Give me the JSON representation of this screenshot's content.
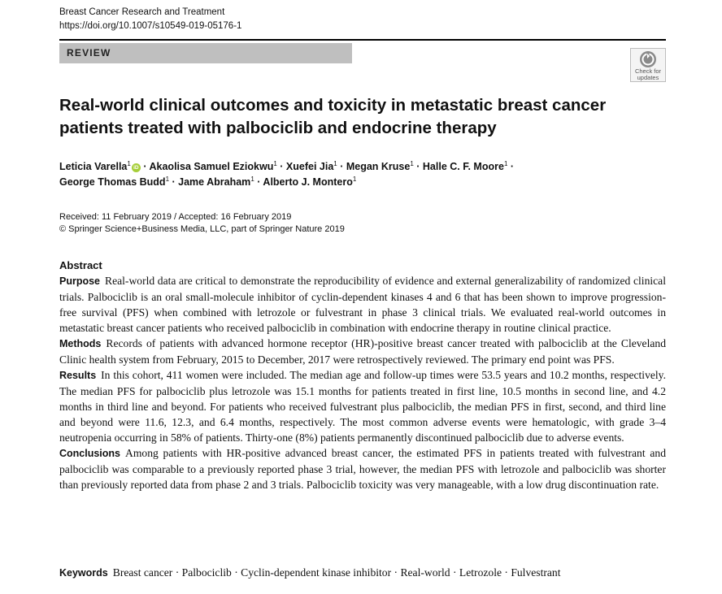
{
  "header": {
    "journal": "Breast Cancer Research and Treatment",
    "doi": "https://doi.org/10.1007/s10549-019-05176-1"
  },
  "banner": {
    "label": "REVIEW"
  },
  "check_updates": {
    "line1": "Check for",
    "line2": "updates"
  },
  "title": {
    "line1": "Real-world clinical outcomes and toxicity in metastatic breast cancer",
    "line2": "patients treated with palbociclib and endocrine therapy"
  },
  "authors": {
    "a1": "Leticia Varella",
    "a2": "Akaolisa Samuel Eziokwu",
    "a3": "Xuefei Jia",
    "a4": "Megan Kruse",
    "a5": "Halle C. F. Moore",
    "a6": "George Thomas Budd",
    "a7": "Jame Abraham",
    "a8": "Alberto J. Montero",
    "affiliation": "1",
    "orcid": "iD"
  },
  "dates": {
    "received": "Received: 11 February 2019 / Accepted: 16 February 2019",
    "copyright": "© Springer Science+Business Media, LLC, part of Springer Nature 2019"
  },
  "abstract": {
    "heading": "Abstract",
    "purpose_label": "Purpose",
    "purpose_text": "Real-world data are critical to demonstrate the reproducibility of evidence and external generalizability of randomized clinical trials. Palbociclib is an oral small-molecule inhibitor of cyclin-dependent kinases 4 and 6 that has been shown to improve progression-free survival (PFS) when combined with letrozole or fulvestrant in phase 3 clinical trials. We evaluated real-world outcomes in metastatic breast cancer patients who received palbociclib in combination with endocrine therapy in routine clinical practice.",
    "methods_label": "Methods",
    "methods_text": "Records of patients with advanced hormone receptor (HR)-positive breast cancer treated with palbociclib at the Cleveland Clinic health system from February, 2015 to December, 2017 were retrospectively reviewed. The primary end point was PFS.",
    "results_label": "Results",
    "results_text": "In this cohort, 411 women were included. The median age and follow-up times were 53.5 years and 10.2 months, respectively. The median PFS for palbociclib plus letrozole was 15.1 months for patients treated in first line, 10.5 months in second line, and 4.2 months in third line and beyond. For patients who received fulvestrant plus palbociclib, the median PFS in first, second, and third line and beyond were 11.6, 12.3, and 6.4 months, respectively. The most common adverse events were hematologic, with grade 3–4 neutropenia occurring in 58% of patients. Thirty-one (8%) patients permanently discontinued palbociclib due to adverse events.",
    "conclusions_label": "Conclusions",
    "conclusions_text": "Among patients with HR-positive advanced breast cancer, the estimated PFS in patients treated with fulvestrant and palbociclib was comparable to a previously reported phase 3 trial, however, the median PFS with letrozole and palbociclib was shorter than previously reported data from phase 2 and 3 trials. Palbociclib toxicity was very manageable, with a low drug discontinuation rate."
  },
  "keywords": {
    "label": "Keywords",
    "text": "Breast cancer · Palbociclib · Cyclin-dependent kinase inhibitor · Real-world · Letrozole · Fulvestrant"
  },
  "colors": {
    "banner_bg": "#bfbfbf",
    "orcid_green": "#a6ce39"
  }
}
